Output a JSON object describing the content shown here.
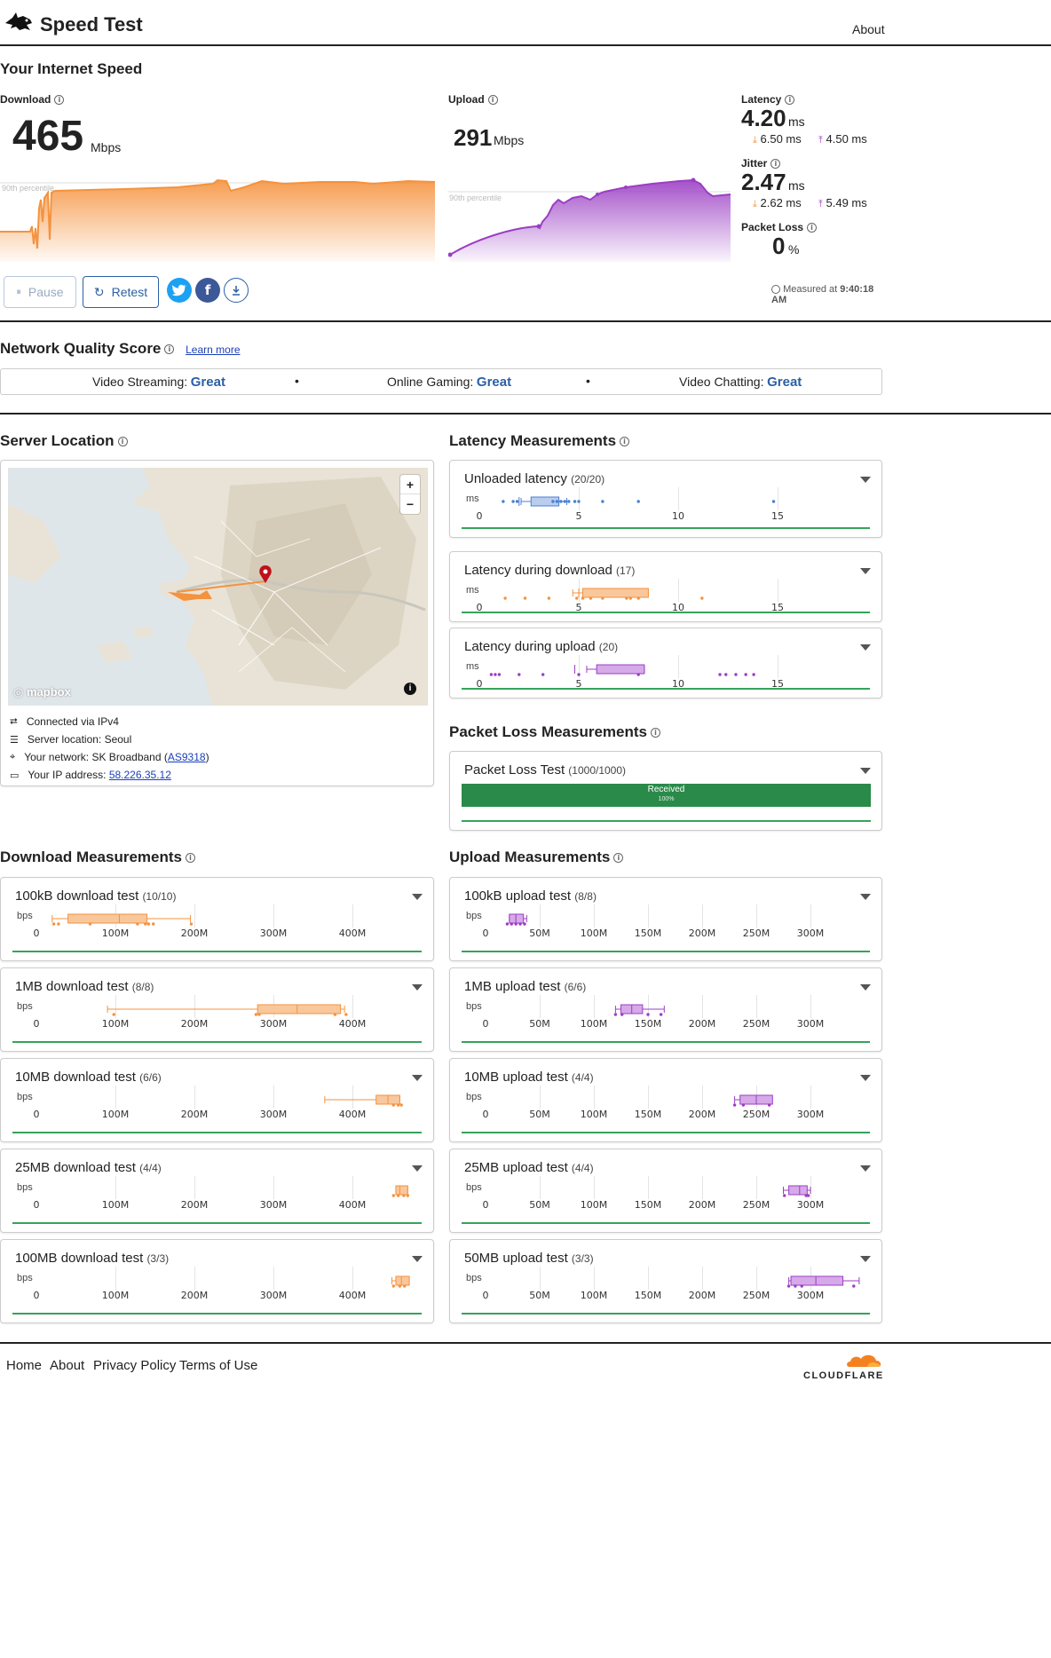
{
  "header": {
    "title": "Speed Test",
    "about": "About"
  },
  "speed": {
    "section_title": "Your Internet Speed",
    "download": {
      "label": "Download",
      "value": "465",
      "unit": "Mbps",
      "percentile": "90th percentile"
    },
    "upload": {
      "label": "Upload",
      "value": "291",
      "unit": "Mbps",
      "percentile": "90th percentile"
    },
    "latency": {
      "label": "Latency",
      "value": "4.20",
      "unit": "ms",
      "down": "6.50 ms",
      "up": "4.50 ms"
    },
    "jitter": {
      "label": "Jitter",
      "value": "2.47",
      "unit": "ms",
      "down": "2.62 ms",
      "up": "5.49 ms"
    },
    "packet_loss": {
      "label": "Packet Loss",
      "value": "0",
      "unit": "%"
    },
    "pause": "Pause",
    "retest": "Retest",
    "measured": "Measured at",
    "measured_time": "9:40:18 AM"
  },
  "quality": {
    "title": "Network Quality Score",
    "learn_more": "Learn more",
    "items": [
      {
        "label": "Video Streaming:",
        "value": "Great"
      },
      {
        "label": "Online Gaming:",
        "value": "Great"
      },
      {
        "label": "Video Chatting:",
        "value": "Great"
      }
    ]
  },
  "server": {
    "title": "Server Location",
    "mapbox": "mapbox",
    "connected": "Connected via IPv4",
    "location": "Server location: Seoul",
    "network_prefix": "Your network: SK Broadband (",
    "network_as": "AS9318",
    "network_suffix": ")",
    "ip_prefix": "Your IP address: ",
    "ip": "58.226.35.12"
  },
  "latency_section": {
    "title": "Latency Measurements",
    "unit": "ms",
    "ticks": [
      "0",
      "5",
      "10",
      "15"
    ],
    "cards": [
      {
        "title": "Unloaded latency",
        "count": "(20/20)"
      },
      {
        "title": "Latency during download",
        "count": "(17)"
      },
      {
        "title": "Latency during upload",
        "count": "(20)"
      }
    ]
  },
  "packet_section": {
    "title": "Packet Loss Measurements",
    "card_title": "Packet Loss Test",
    "count": "(1000/1000)",
    "received": "Received",
    "received_pct": "100%"
  },
  "download_section": {
    "title": "Download Measurements",
    "unit": "bps",
    "ticks": [
      "0",
      "100M",
      "200M",
      "300M",
      "400M"
    ],
    "cards": [
      {
        "title": "100kB download test",
        "count": "(10/10)"
      },
      {
        "title": "1MB download test",
        "count": "(8/8)"
      },
      {
        "title": "10MB download test",
        "count": "(6/6)"
      },
      {
        "title": "25MB download test",
        "count": "(4/4)"
      },
      {
        "title": "100MB download test",
        "count": "(3/3)"
      }
    ]
  },
  "upload_section": {
    "title": "Upload Measurements",
    "unit": "bps",
    "ticks": [
      "0",
      "50M",
      "100M",
      "150M",
      "200M",
      "250M",
      "300M"
    ],
    "cards": [
      {
        "title": "100kB upload test",
        "count": "(8/8)"
      },
      {
        "title": "1MB upload test",
        "count": "(6/6)"
      },
      {
        "title": "10MB upload test",
        "count": "(4/4)"
      },
      {
        "title": "25MB upload test",
        "count": "(4/4)"
      },
      {
        "title": "50MB upload test",
        "count": "(3/3)"
      }
    ]
  },
  "footer": {
    "home": "Home",
    "about": "About",
    "privacy": "Privacy Policy",
    "terms": "Terms of Use",
    "brand": "CLOUDFLARE"
  },
  "colors": {
    "download": "#f5923e",
    "upload": "#9b3ec4",
    "accent": "#2b5fa6",
    "green": "#2a8a4a"
  }
}
